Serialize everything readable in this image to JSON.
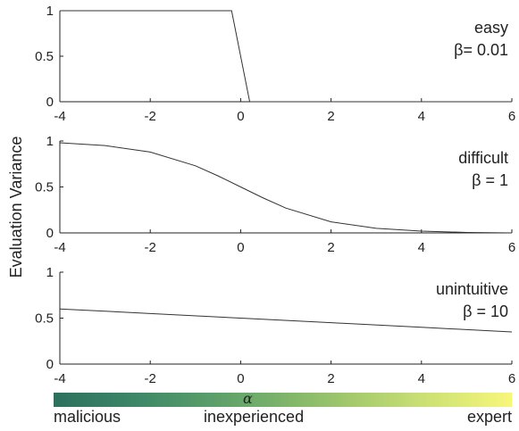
{
  "ylabel": "Evaluation Variance",
  "colorbar": {
    "symbol": "α",
    "labels": [
      "malicious",
      "inexperienced",
      "expert"
    ],
    "colors": [
      "#2d6f5e",
      "#f7f77a"
    ]
  },
  "chart_data": [
    {
      "type": "line",
      "annotation": [
        "easy",
        "β= 0.01"
      ],
      "xlim": [
        -4,
        6
      ],
      "ylim": [
        0,
        1
      ],
      "xticks": [
        -4,
        -2,
        0,
        2,
        4,
        6
      ],
      "yticks": [
        0,
        0.5,
        1
      ],
      "series": [
        {
          "x": [
            -4,
            -0.2,
            0.2,
            6
          ],
          "y": [
            1,
            1,
            0,
            0
          ]
        }
      ]
    },
    {
      "type": "line",
      "annotation": [
        "difficult",
        "β = 1"
      ],
      "xlim": [
        -4,
        6
      ],
      "ylim": [
        0,
        1
      ],
      "xticks": [
        -4,
        -2,
        0,
        2,
        4,
        6
      ],
      "yticks": [
        0,
        0.5,
        1
      ],
      "series": [
        {
          "x": [
            -4,
            -3,
            -2,
            -1,
            -0.5,
            0,
            0.5,
            1,
            2,
            3,
            4,
            5,
            6
          ],
          "y": [
            0.98,
            0.95,
            0.88,
            0.73,
            0.62,
            0.5,
            0.38,
            0.27,
            0.12,
            0.05,
            0.02,
            0.005,
            0.0
          ]
        }
      ]
    },
    {
      "type": "line",
      "annotation": [
        "unintuitive",
        "β = 10"
      ],
      "xlim": [
        -4,
        6
      ],
      "ylim": [
        0,
        1
      ],
      "xticks": [
        -4,
        -2,
        0,
        2,
        4,
        6
      ],
      "yticks": [
        0,
        0.5,
        1
      ],
      "series": [
        {
          "x": [
            -4,
            -2,
            0,
            2,
            4,
            6
          ],
          "y": [
            0.6,
            0.55,
            0.5,
            0.45,
            0.4,
            0.35
          ]
        }
      ]
    }
  ]
}
